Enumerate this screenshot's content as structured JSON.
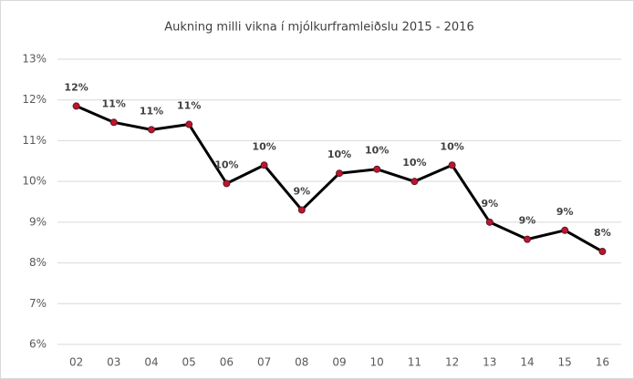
{
  "chart_data": {
    "type": "line",
    "title": "Aukning milli vikna í mjólkurframleiðslu 2015 - 2016",
    "categories": [
      "02",
      "03",
      "04",
      "05",
      "06",
      "07",
      "08",
      "09",
      "10",
      "11",
      "12",
      "13",
      "14",
      "15",
      "16"
    ],
    "series": [
      {
        "name": null,
        "color": "#000000",
        "marker_color": "#c0142c",
        "values": [
          11.85,
          11.45,
          11.27,
          11.4,
          9.95,
          10.4,
          9.3,
          10.2,
          10.3,
          10.0,
          10.4,
          9.0,
          8.58,
          8.8,
          8.28
        ],
        "value_labels": [
          "12%",
          "11%",
          "11%",
          "11%",
          "10%",
          "10%",
          "9%",
          "10%",
          "10%",
          "10%",
          "10%",
          "9%",
          "9%",
          "9%",
          "8%"
        ]
      }
    ],
    "ylim": [
      6,
      13
    ],
    "yticks": [
      {
        "value": 6,
        "label": "6%"
      },
      {
        "value": 7,
        "label": "7%"
      },
      {
        "value": 8,
        "label": "8%"
      },
      {
        "value": 9,
        "label": "9%"
      },
      {
        "value": 10,
        "label": "10%"
      },
      {
        "value": 11,
        "label": "11%"
      },
      {
        "value": 12,
        "label": "12%"
      },
      {
        "value": 13,
        "label": "13%"
      }
    ],
    "grid": true
  }
}
